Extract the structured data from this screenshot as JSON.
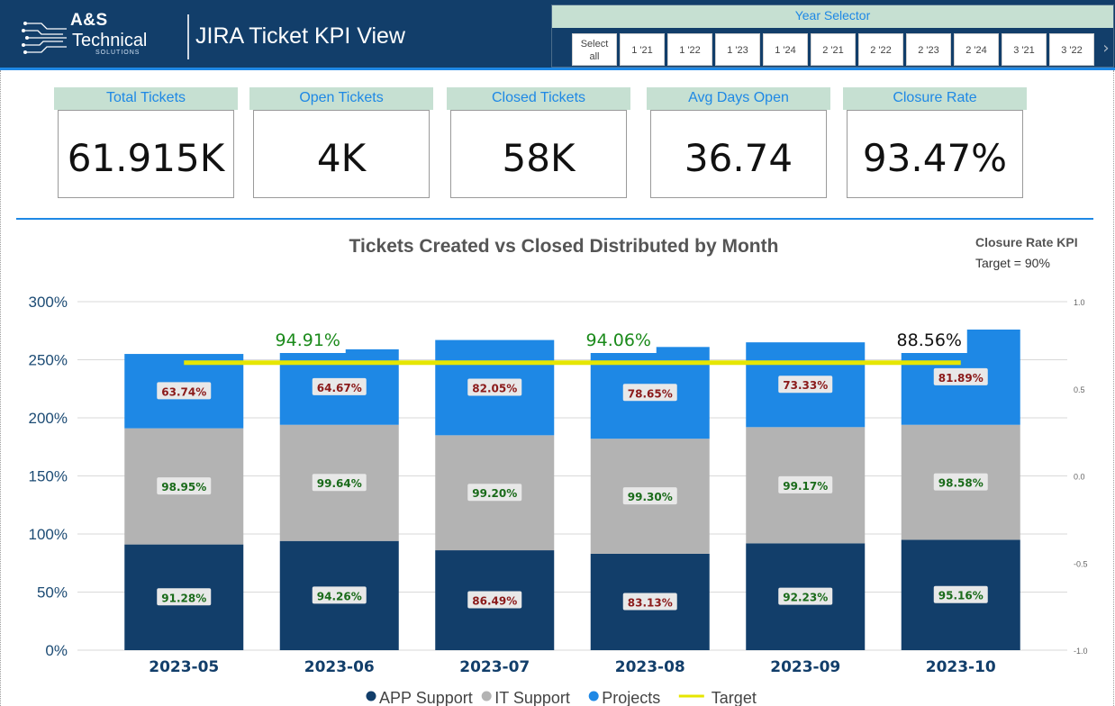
{
  "brand": {
    "line1": "A&S",
    "line2": "Technical",
    "line3": "SOLUTIONS"
  },
  "header": {
    "title": "JIRA Ticket KPI View"
  },
  "year_selector": {
    "title": "Year Selector",
    "options": [
      "Select all",
      "1 '21",
      "1 '22",
      "1 '23",
      "1 '24",
      "2 '21",
      "2 '22",
      "2 '23",
      "2 '24",
      "3 '21",
      "3 '22"
    ]
  },
  "kpis": [
    {
      "label": "Total Tickets",
      "value": "61.915K"
    },
    {
      "label": "Open Tickets",
      "value": "4K"
    },
    {
      "label": "Closed Tickets",
      "value": "58K"
    },
    {
      "label": "Avg Days Open",
      "value": "36.74"
    },
    {
      "label": "Closure Rate",
      "value": "93.47%"
    }
  ],
  "kpi_note": {
    "title": "Closure Rate KPI",
    "text": "Target = 90%"
  },
  "colors": {
    "app_support": "#123e6a",
    "it_support": "#b3b3b3",
    "projects": "#1e88e5",
    "target": "#e6e600",
    "good_label": "#1a6b1a",
    "bad_label": "#8b1a1a"
  },
  "chart_data": {
    "type": "bar",
    "stacked": true,
    "title": "Tickets Created vs Closed Distributed by Month",
    "categories": [
      "2023-05",
      "2023-06",
      "2023-07",
      "2023-08",
      "2023-09",
      "2023-10"
    ],
    "series": [
      {
        "name": "APP Support",
        "values": [
          91,
          94,
          86,
          83,
          92,
          95
        ],
        "labels": [
          "91.28%",
          "94.26%",
          "86.49%",
          "83.13%",
          "92.23%",
          "95.16%"
        ]
      },
      {
        "name": "IT Support",
        "values": [
          100,
          100,
          99,
          99,
          100,
          99
        ],
        "labels": [
          "98.95%",
          "99.64%",
          "99.20%",
          "99.30%",
          "99.17%",
          "98.58%"
        ]
      },
      {
        "name": "Projects",
        "values": [
          64,
          65,
          82,
          79,
          73,
          82
        ],
        "labels": [
          "63.74%",
          "64.67%",
          "82.05%",
          "78.65%",
          "73.33%",
          "81.89%"
        ]
      },
      {
        "name": "Target",
        "type": "line",
        "values": [
          0.65,
          0.65,
          0.65,
          0.65,
          0.65,
          0.65
        ]
      }
    ],
    "ylim": [
      0,
      300
    ],
    "yticks": [
      "0%",
      "50%",
      "100%",
      "150%",
      "200%",
      "250%",
      "300%"
    ],
    "y2lim": [
      -1.0,
      1.0
    ],
    "y2ticks": [
      "-1.0",
      "-0.5",
      "0.0",
      "0.5",
      "1.0"
    ],
    "total_labels": [
      {
        "category": "2023-06",
        "text": "94.91%",
        "color": "#1a8a1a"
      },
      {
        "category": "2023-08",
        "text": "94.06%",
        "color": "#1a8a1a"
      },
      {
        "category": "2023-10",
        "text": "88.56%",
        "color": "#111111"
      }
    ],
    "legend": [
      "APP Support",
      "IT Support",
      "Projects",
      "Target"
    ],
    "legend_position": "bottom",
    "grid": true
  }
}
